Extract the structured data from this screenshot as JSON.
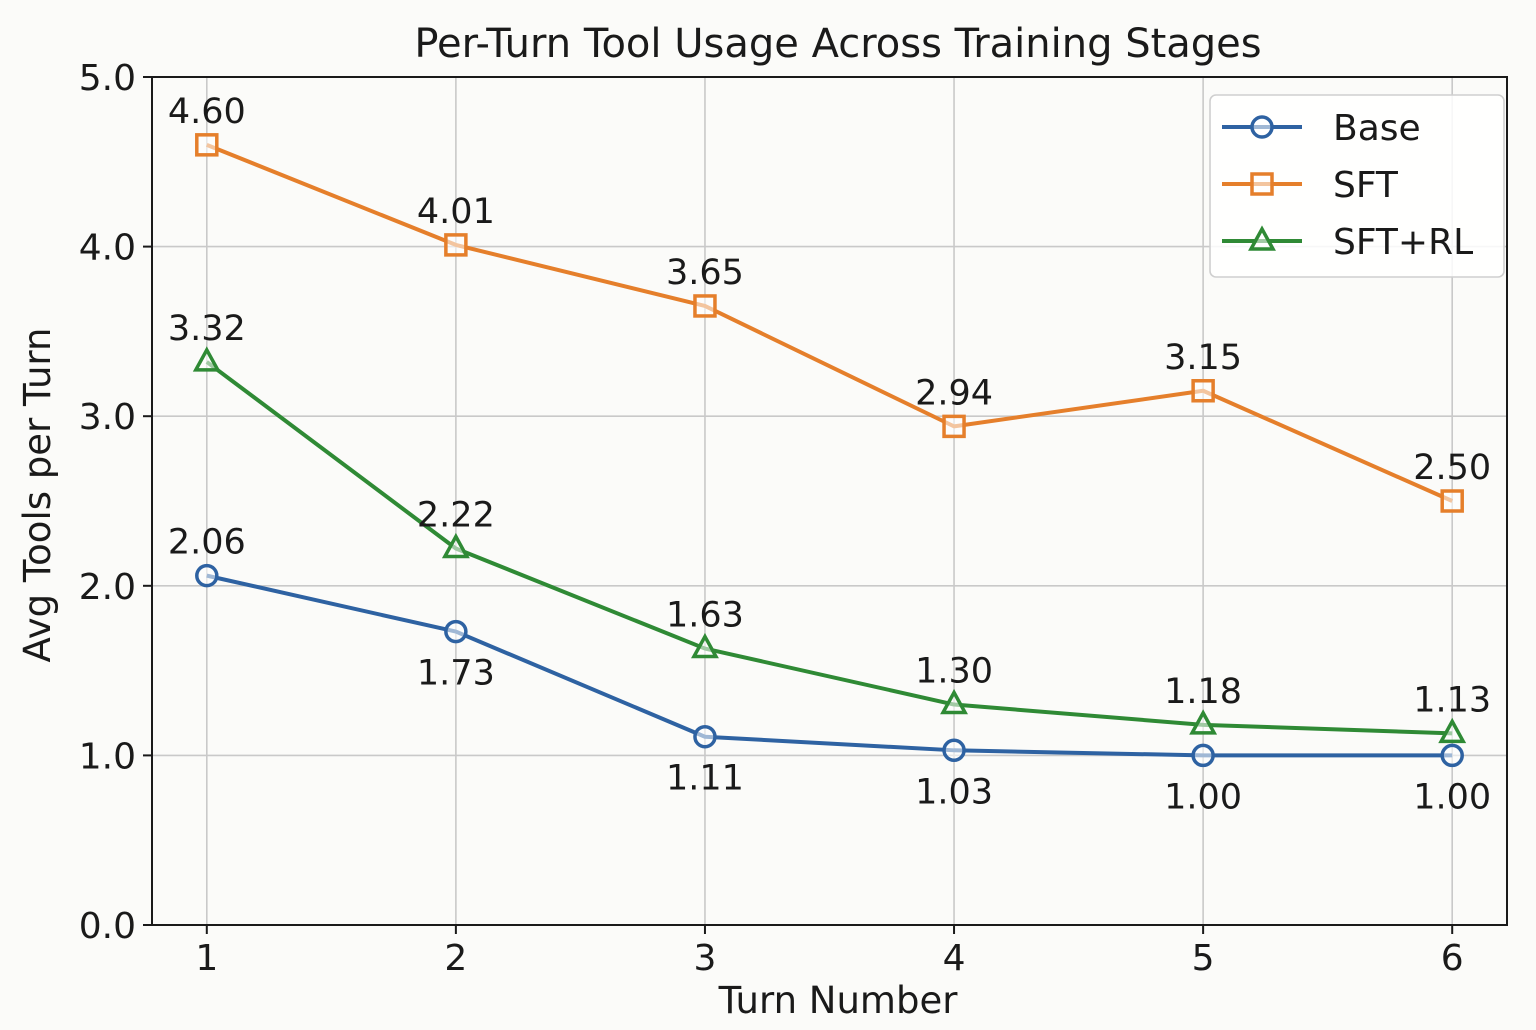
{
  "chart_data": {
    "type": "line",
    "title": "Per-Turn Tool Usage Across Training Stages",
    "xlabel": "Turn Number",
    "ylabel": "Avg Tools per Turn",
    "x": [
      1,
      2,
      3,
      4,
      5,
      6
    ],
    "xticks": [
      "1",
      "2",
      "3",
      "4",
      "5",
      "6"
    ],
    "yticks": [
      "0.0",
      "1.0",
      "2.0",
      "3.0",
      "4.0",
      "5.0"
    ],
    "ylim": [
      0,
      5
    ],
    "xlim": [
      0.78,
      6.22
    ],
    "grid": true,
    "legend_position": "top-right",
    "series": [
      {
        "name": "Base",
        "color": "#2e62a2",
        "marker": "circle",
        "values": [
          2.06,
          1.73,
          1.11,
          1.03,
          1.0,
          1.0
        ],
        "labels": [
          "2.06",
          "1.73",
          "1.11",
          "1.03",
          "1.00",
          "1.00"
        ],
        "label_side": [
          "above",
          "below",
          "below",
          "below",
          "below",
          "below"
        ]
      },
      {
        "name": "SFT",
        "color": "#e57f2b",
        "marker": "square",
        "values": [
          4.6,
          4.01,
          3.65,
          2.94,
          3.15,
          2.5
        ],
        "labels": [
          "4.60",
          "4.01",
          "3.65",
          "2.94",
          "3.15",
          "2.50"
        ],
        "label_side": [
          "above",
          "above",
          "above",
          "above",
          "above",
          "above"
        ]
      },
      {
        "name": "SFT+RL",
        "color": "#2f8a35",
        "marker": "triangle",
        "values": [
          3.32,
          2.22,
          1.63,
          1.3,
          1.18,
          1.13
        ],
        "labels": [
          "3.32",
          "2.22",
          "1.63",
          "1.30",
          "1.18",
          "1.13"
        ],
        "label_side": [
          "above",
          "above",
          "above",
          "above",
          "above",
          "above"
        ]
      }
    ]
  }
}
